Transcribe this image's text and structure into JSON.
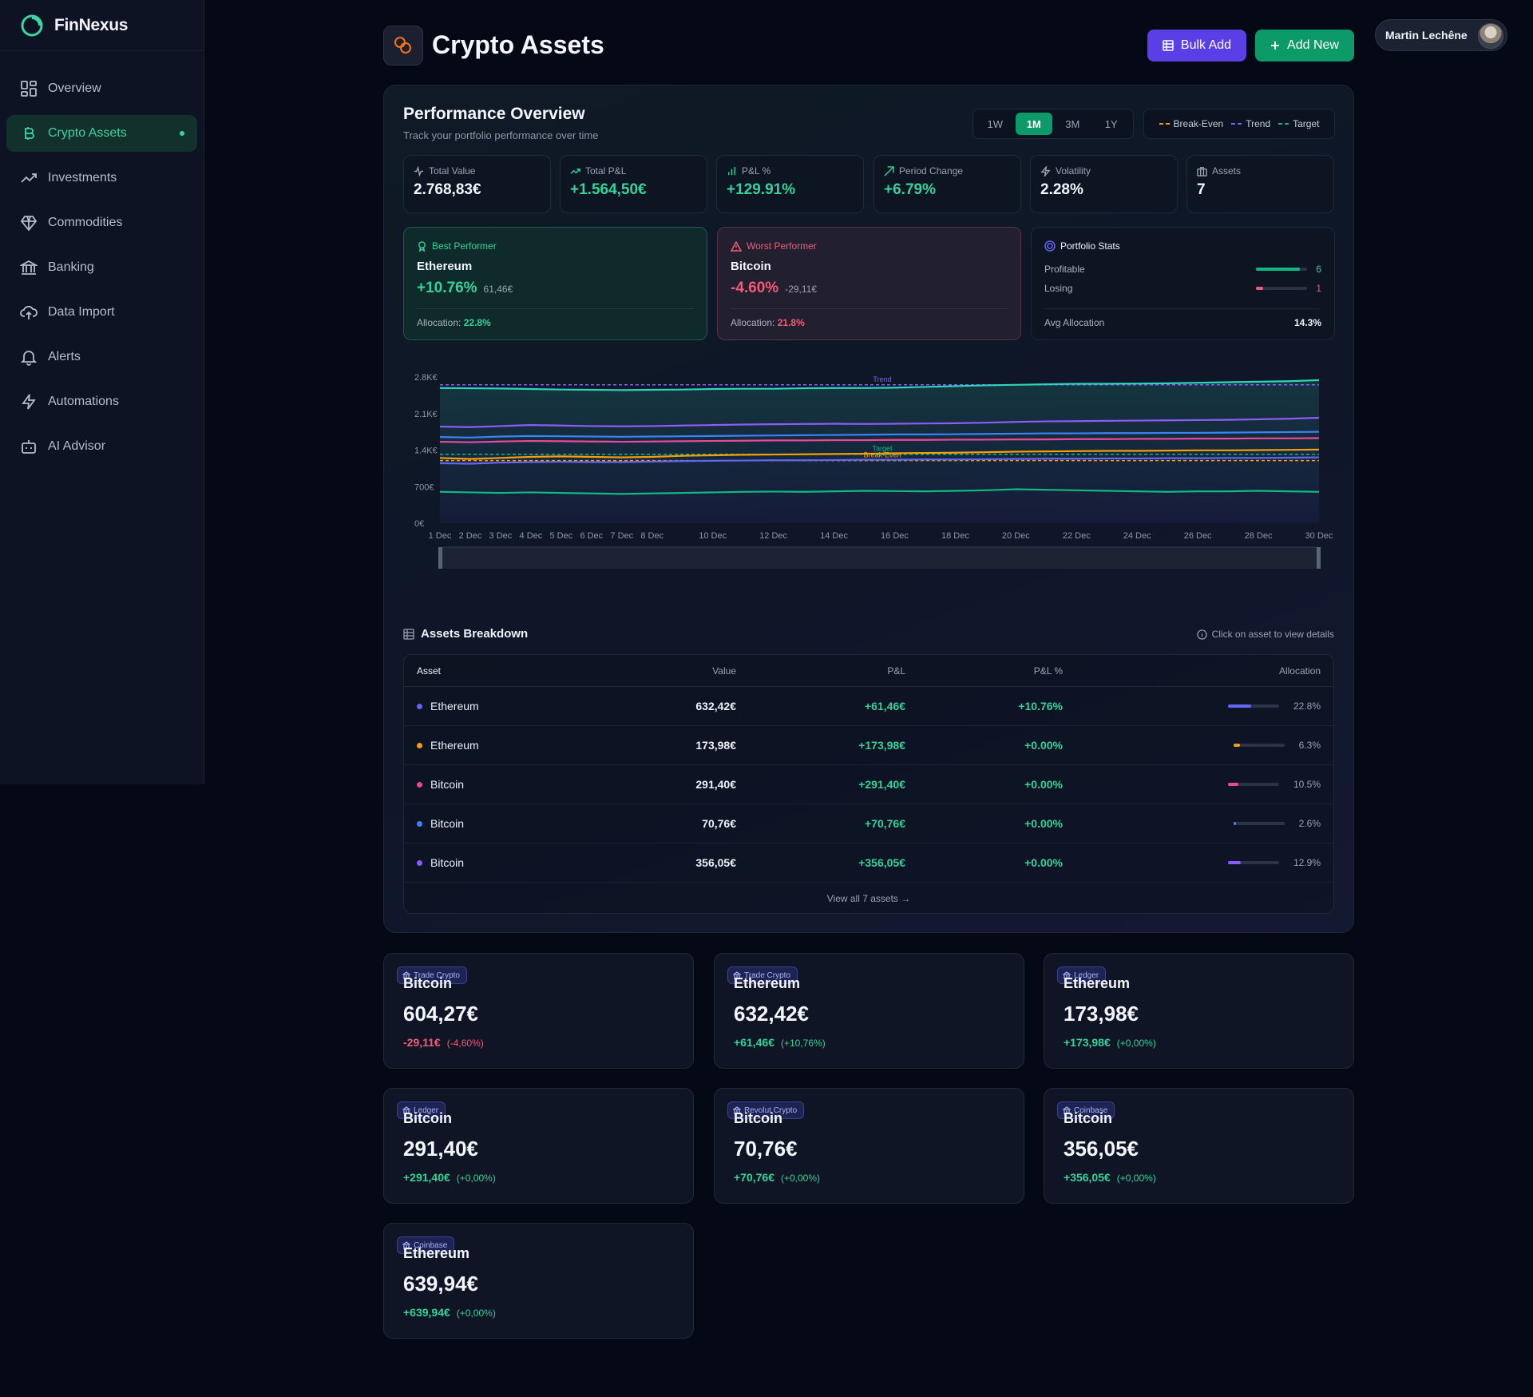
{
  "app": {
    "name": "FinNexus"
  },
  "sidebar": {
    "items": [
      {
        "label": "Overview",
        "icon": "grid-icon"
      },
      {
        "label": "Crypto Assets",
        "icon": "bitcoin-icon",
        "active": true
      },
      {
        "label": "Investments",
        "icon": "trending-up-icon"
      },
      {
        "label": "Commodities",
        "icon": "gem-icon"
      },
      {
        "label": "Banking",
        "icon": "bank-icon"
      },
      {
        "label": "Data Import",
        "icon": "cloud-upload-icon"
      },
      {
        "label": "Alerts",
        "icon": "bell-icon"
      },
      {
        "label": "Automations",
        "icon": "lightning-icon"
      },
      {
        "label": "AI Advisor",
        "icon": "robot-icon"
      }
    ]
  },
  "header": {
    "title": "Crypto Assets",
    "bulk_add": "Bulk Add",
    "add_new": "Add New",
    "user_name": "Martin Lechêne"
  },
  "performance": {
    "title": "Performance Overview",
    "subtitle": "Track your portfolio performance over time",
    "ranges": [
      "1W",
      "1M",
      "3M",
      "1Y"
    ],
    "active_range": "1M",
    "legend": [
      {
        "label": "Break-Even",
        "color": "#f59e0b"
      },
      {
        "label": "Trend",
        "color": "#8b5cf6"
      },
      {
        "label": "Target",
        "color": "#10b981"
      }
    ],
    "stats": [
      {
        "label": "Total Value",
        "value": "2.768,83€",
        "icon": "activity-icon"
      },
      {
        "label": "Total P&L",
        "value": "+1.564,50€",
        "icon": "trending-up-icon"
      },
      {
        "label": "P&L %",
        "value": "+129.91%",
        "icon": "bar-chart-icon"
      },
      {
        "label": "Period Change",
        "value": "+6.79%",
        "icon": "trend-icon"
      },
      {
        "label": "Volatility",
        "value": "2.28%",
        "icon": "lightning-icon"
      },
      {
        "label": "Assets",
        "value": "7",
        "icon": "briefcase-icon"
      }
    ],
    "best": {
      "label": "Best Performer",
      "asset": "Ethereum",
      "pct": "+10.76%",
      "amount": "61,46€",
      "alloc_label": "Allocation:",
      "alloc": "22.8%"
    },
    "worst": {
      "label": "Worst Performer",
      "asset": "Bitcoin",
      "pct": "-4.60%",
      "amount": "-29,11€",
      "alloc_label": "Allocation:",
      "alloc": "21.8%"
    },
    "portfolio_stats": {
      "label": "Portfolio Stats",
      "profitable_label": "Profitable",
      "profitable": "6",
      "profitable_ratio": 0.857,
      "losing_label": "Losing",
      "losing": "1",
      "losing_ratio": 0.143,
      "avg_label": "Avg Allocation",
      "avg": "14.3%"
    }
  },
  "chart_data": {
    "type": "line",
    "x": [
      "1 Dec",
      "2 Dec",
      "3 Dec",
      "4 Dec",
      "5 Dec",
      "6 Dec",
      "7 Dec",
      "8 Dec",
      "9 Dec",
      "10 Dec",
      "11 Dec",
      "12 Dec",
      "13 Dec",
      "14 Dec",
      "15 Dec",
      "16 Dec",
      "17 Dec",
      "18 Dec",
      "19 Dec",
      "20 Dec",
      "21 Dec",
      "22 Dec",
      "23 Dec",
      "24 Dec",
      "25 Dec",
      "26 Dec",
      "27 Dec",
      "28 Dec",
      "29 Dec",
      "30 Dec"
    ],
    "x_tick_labels": [
      "1 Dec",
      "2 Dec",
      "3 Dec",
      "4 Dec",
      "5 Dec",
      "6 Dec",
      "7 Dec",
      "8 Dec",
      "10 Dec",
      "12 Dec",
      "14 Dec",
      "16 Dec",
      "18 Dec",
      "20 Dec",
      "22 Dec",
      "24 Dec",
      "26 Dec",
      "28 Dec",
      "30 Dec"
    ],
    "y_ticks": [
      "0€",
      "700€",
      "1.4K€",
      "2.1K€",
      "2.8K€"
    ],
    "ylim": [
      0,
      2800
    ],
    "series": [
      {
        "color": "#2dd4bf",
        "values": [
          2590,
          2585,
          2580,
          2570,
          2560,
          2555,
          2550,
          2555,
          2560,
          2570,
          2575,
          2575,
          2585,
          2590,
          2590,
          2595,
          2610,
          2625,
          2640,
          2650,
          2660,
          2670,
          2670,
          2675,
          2680,
          2690,
          2700,
          2710,
          2720,
          2740
        ]
      },
      {
        "color": "#8b5cf6",
        "values": [
          1850,
          1840,
          1860,
          1880,
          1870,
          1860,
          1855,
          1860,
          1870,
          1880,
          1890,
          1895,
          1900,
          1905,
          1900,
          1905,
          1910,
          1915,
          1925,
          1940,
          1950,
          1955,
          1960,
          1965,
          1970,
          1975,
          1980,
          1990,
          2000,
          2020
        ]
      },
      {
        "color": "#3b82f6",
        "values": [
          1650,
          1640,
          1660,
          1670,
          1665,
          1660,
          1655,
          1660,
          1665,
          1670,
          1675,
          1680,
          1685,
          1690,
          1695,
          1700,
          1700,
          1705,
          1710,
          1715,
          1720,
          1720,
          1725,
          1725,
          1730,
          1730,
          1735,
          1740,
          1745,
          1750
        ]
      },
      {
        "color": "#ec4899",
        "values": [
          1560,
          1550,
          1565,
          1575,
          1570,
          1565,
          1560,
          1565,
          1570,
          1575,
          1580,
          1585,
          1585,
          1590,
          1590,
          1595,
          1595,
          1600,
          1600,
          1605,
          1605,
          1610,
          1610,
          1615,
          1615,
          1620,
          1620,
          1625,
          1625,
          1630
        ]
      },
      {
        "color": "#f59e0b",
        "values": [
          1250,
          1230,
          1250,
          1270,
          1280,
          1270,
          1260,
          1270,
          1290,
          1300,
          1310,
          1315,
          1320,
          1325,
          1330,
          1340,
          1345,
          1350,
          1360,
          1370,
          1375,
          1380,
          1385,
          1385,
          1390,
          1395,
          1395,
          1400,
          1405,
          1410
        ]
      },
      {
        "color": "#6366f1",
        "values": [
          1150,
          1140,
          1160,
          1170,
          1175,
          1170,
          1170,
          1180,
          1190,
          1195,
          1200,
          1205,
          1205,
          1210,
          1215,
          1215,
          1220,
          1220,
          1225,
          1230,
          1235,
          1235,
          1240,
          1240,
          1245,
          1245,
          1250,
          1250,
          1255,
          1260
        ]
      },
      {
        "color": "#10b981",
        "values": [
          600,
          590,
          580,
          590,
          580,
          570,
          560,
          570,
          580,
          590,
          600,
          605,
          600,
          610,
          620,
          615,
          610,
          620,
          630,
          650,
          640,
          630,
          620,
          610,
          600,
          610,
          610,
          620,
          610,
          600
        ]
      }
    ],
    "reference_lines": [
      {
        "label": "Trend",
        "value": 2650,
        "color": "#8b5cf6"
      },
      {
        "label": "Target",
        "value": 1320,
        "color": "#10b981"
      },
      {
        "label": "Break-Even",
        "value": 1200,
        "color": "#f59e0b"
      }
    ]
  },
  "breakdown": {
    "title": "Assets Breakdown",
    "hint": "Click on asset to view details",
    "headers": {
      "asset": "Asset",
      "value": "Value",
      "pl": "P&L",
      "plp": "P&L %",
      "alloc": "Allocation"
    },
    "rows": [
      {
        "asset": "Ethereum",
        "value": "632,42€",
        "pl": "+61,46€",
        "plp": "+10.76%",
        "alloc": "22.8%",
        "ratio": 0.228,
        "color": "#6366f1"
      },
      {
        "asset": "Ethereum",
        "value": "173,98€",
        "pl": "+173,98€",
        "plp": "+0.00%",
        "alloc": "6.3%",
        "ratio": 0.063,
        "color": "#f59e0b"
      },
      {
        "asset": "Bitcoin",
        "value": "291,40€",
        "pl": "+291,40€",
        "plp": "+0.00%",
        "alloc": "10.5%",
        "ratio": 0.105,
        "color": "#ec4899"
      },
      {
        "asset": "Bitcoin",
        "value": "70,76€",
        "pl": "+70,76€",
        "plp": "+0.00%",
        "alloc": "2.6%",
        "ratio": 0.026,
        "color": "#3b82f6"
      },
      {
        "asset": "Bitcoin",
        "value": "356,05€",
        "pl": "+356,05€",
        "plp": "+0.00%",
        "alloc": "12.9%",
        "ratio": 0.129,
        "color": "#8b5cf6"
      }
    ],
    "view_all": "View all 7 assets →"
  },
  "asset_cards": [
    {
      "badge": "Trade Crypto",
      "name": "Bitcoin",
      "amount": "604,27€",
      "change": "-29,11€",
      "change_pct": "(-4,60%)",
      "positive": false
    },
    {
      "badge": "Trade Crypto",
      "name": "Ethereum",
      "amount": "632,42€",
      "change": "+61,46€",
      "change_pct": "(+10,76%)",
      "positive": true
    },
    {
      "badge": "Ledger",
      "name": "Ethereum",
      "amount": "173,98€",
      "change": "+173,98€",
      "change_pct": "(+0,00%)",
      "positive": true
    },
    {
      "badge": "Ledger",
      "name": "Bitcoin",
      "amount": "291,40€",
      "change": "+291,40€",
      "change_pct": "(+0,00%)",
      "positive": true
    },
    {
      "badge": "Revolut Crypto",
      "name": "Bitcoin",
      "amount": "70,76€",
      "change": "+70,76€",
      "change_pct": "(+0,00%)",
      "positive": true
    },
    {
      "badge": "Coinbase",
      "name": "Bitcoin",
      "amount": "356,05€",
      "change": "+356,05€",
      "change_pct": "(+0,00%)",
      "positive": true
    },
    {
      "badge": "Coinbase",
      "name": "Ethereum",
      "amount": "639,94€",
      "change": "+639,94€",
      "change_pct": "(+0,00%)",
      "positive": true
    }
  ],
  "colors": {
    "accent": "#3ed3a0",
    "positive": "#34d399",
    "negative": "#f25b7a",
    "primary": "#5b3fe6",
    "success": "#0c9a68"
  }
}
